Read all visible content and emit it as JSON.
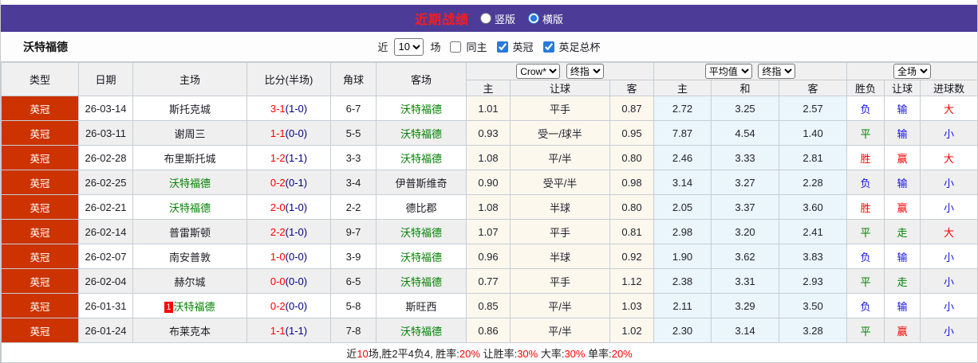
{
  "title_bar": {
    "title": "近期战绩",
    "radio_vertical": "竖版",
    "radio_horizontal": "横版"
  },
  "filter_bar": {
    "team": "沃特福德",
    "near_label": "近",
    "matches_value": "10",
    "matches_label": "场",
    "checkbox_same_home": "同主",
    "checkbox_league": "英冠",
    "checkbox_cup": "英足总杯"
  },
  "table": {
    "left_headers": [
      "类型",
      "日期",
      "主场",
      "比分(半场)",
      "角球",
      "客场"
    ],
    "group1": {
      "select1": "Crow*",
      "select2": "终指",
      "sub": [
        "主",
        "让球",
        "客"
      ]
    },
    "group2": {
      "select1": "平均值",
      "select2": "终指",
      "sub": [
        "主",
        "和",
        "客"
      ]
    },
    "group3": {
      "select1": "全场",
      "sub": [
        "胜负",
        "让球",
        "进球数"
      ]
    },
    "rows": [
      {
        "type": "英冠",
        "date": "26-03-14",
        "home": "斯托克城",
        "home_is_team": false,
        "score_ft": "3-1",
        "score_ht": "(1-0)",
        "corner": "6-7",
        "away": "沃特福德",
        "away_is_team": true,
        "odds": [
          "1.01",
          "平手",
          "0.87"
        ],
        "avg": [
          "2.72",
          "3.25",
          "2.57"
        ],
        "results": [
          {
            "text": "负",
            "color": "blue"
          },
          {
            "text": "输",
            "color": "blue"
          },
          {
            "text": "大",
            "color": "red"
          }
        ]
      },
      {
        "type": "英冠",
        "date": "26-03-11",
        "home": "谢周三",
        "home_is_team": false,
        "score_ft": "1-1",
        "score_ht": "(0-0)",
        "corner": "5-5",
        "away": "沃特福德",
        "away_is_team": true,
        "odds": [
          "0.93",
          "受一/球半",
          "0.95"
        ],
        "avg": [
          "7.87",
          "4.54",
          "1.40"
        ],
        "results": [
          {
            "text": "平",
            "color": "green"
          },
          {
            "text": "输",
            "color": "blue"
          },
          {
            "text": "小",
            "color": "blue"
          }
        ]
      },
      {
        "type": "英冠",
        "date": "26-02-28",
        "home": "布里斯托城",
        "home_is_team": false,
        "score_ft": "1-2",
        "score_ht": "(1-1)",
        "corner": "3-3",
        "away": "沃特福德",
        "away_is_team": true,
        "odds": [
          "1.08",
          "平/半",
          "0.80"
        ],
        "avg": [
          "2.46",
          "3.33",
          "2.81"
        ],
        "results": [
          {
            "text": "胜",
            "color": "red"
          },
          {
            "text": "赢",
            "color": "red"
          },
          {
            "text": "大",
            "color": "red"
          }
        ]
      },
      {
        "type": "英冠",
        "date": "26-02-25",
        "home": "沃特福德",
        "home_is_team": true,
        "score_ft": "0-2",
        "score_ht": "(0-1)",
        "corner": "3-4",
        "away": "伊普斯维奇",
        "away_is_team": false,
        "odds": [
          "0.90",
          "受平/半",
          "0.98"
        ],
        "avg": [
          "3.14",
          "3.27",
          "2.28"
        ],
        "results": [
          {
            "text": "负",
            "color": "blue"
          },
          {
            "text": "输",
            "color": "blue"
          },
          {
            "text": "小",
            "color": "blue"
          }
        ]
      },
      {
        "type": "英冠",
        "date": "26-02-21",
        "home": "沃特福德",
        "home_is_team": true,
        "score_ft": "2-0",
        "score_ht": "(1-0)",
        "corner": "2-2",
        "away": "德比郡",
        "away_is_team": false,
        "odds": [
          "1.08",
          "半球",
          "0.80"
        ],
        "avg": [
          "2.05",
          "3.37",
          "3.60"
        ],
        "results": [
          {
            "text": "胜",
            "color": "red"
          },
          {
            "text": "赢",
            "color": "red"
          },
          {
            "text": "小",
            "color": "blue"
          }
        ]
      },
      {
        "type": "英冠",
        "date": "26-02-14",
        "home": "普雷斯顿",
        "home_is_team": false,
        "score_ft": "2-2",
        "score_ht": "(1-0)",
        "corner": "9-7",
        "away": "沃特福德",
        "away_is_team": true,
        "odds": [
          "1.07",
          "平手",
          "0.81"
        ],
        "avg": [
          "2.98",
          "3.20",
          "2.41"
        ],
        "results": [
          {
            "text": "平",
            "color": "green"
          },
          {
            "text": "走",
            "color": "green"
          },
          {
            "text": "大",
            "color": "red"
          }
        ]
      },
      {
        "type": "英冠",
        "date": "26-02-07",
        "home": "南安普敦",
        "home_is_team": false,
        "score_ft": "1-0",
        "score_ht": "(0-0)",
        "corner": "3-9",
        "away": "沃特福德",
        "away_is_team": true,
        "odds": [
          "0.96",
          "半球",
          "0.92"
        ],
        "avg": [
          "1.90",
          "3.62",
          "3.83"
        ],
        "results": [
          {
            "text": "负",
            "color": "blue"
          },
          {
            "text": "输",
            "color": "blue"
          },
          {
            "text": "小",
            "color": "blue"
          }
        ]
      },
      {
        "type": "英冠",
        "date": "26-02-04",
        "home": "赫尔城",
        "home_is_team": false,
        "score_ft": "0-0",
        "score_ht": "(0-0)",
        "corner": "6-5",
        "away": "沃特福德",
        "away_is_team": true,
        "odds": [
          "0.77",
          "平手",
          "1.12"
        ],
        "avg": [
          "2.38",
          "3.31",
          "2.93"
        ],
        "results": [
          {
            "text": "平",
            "color": "green"
          },
          {
            "text": "走",
            "color": "green"
          },
          {
            "text": "小",
            "color": "blue"
          }
        ]
      },
      {
        "type": "英冠",
        "date": "26-01-31",
        "home": "沃特福德",
        "home_is_team": true,
        "badge": "1",
        "score_ft": "0-2",
        "score_ht": "(0-0)",
        "corner": "5-8",
        "away": "斯旺西",
        "away_is_team": false,
        "odds": [
          "0.85",
          "平/半",
          "1.03"
        ],
        "avg": [
          "2.11",
          "3.29",
          "3.50"
        ],
        "results": [
          {
            "text": "负",
            "color": "blue"
          },
          {
            "text": "输",
            "color": "blue"
          },
          {
            "text": "小",
            "color": "blue"
          }
        ]
      },
      {
        "type": "英冠",
        "date": "26-01-24",
        "home": "布莱克本",
        "home_is_team": false,
        "score_ft": "1-1",
        "score_ht": "(1-1)",
        "corner": "7-8",
        "away": "沃特福德",
        "away_is_team": true,
        "odds": [
          "0.86",
          "平/半",
          "1.02"
        ],
        "avg": [
          "2.30",
          "3.14",
          "3.28"
        ],
        "results": [
          {
            "text": "平",
            "color": "green"
          },
          {
            "text": "赢",
            "color": "red"
          },
          {
            "text": "小",
            "color": "blue"
          }
        ]
      }
    ]
  },
  "footer": {
    "segments": [
      {
        "text": "近",
        "color": "dark"
      },
      {
        "text": "10",
        "color": "red"
      },
      {
        "text": "场,胜2平4负4, 胜率:",
        "color": "dark"
      },
      {
        "text": "20%",
        "color": "red"
      },
      {
        "text": " 让胜率:",
        "color": "dark"
      },
      {
        "text": "30%",
        "color": "red"
      },
      {
        "text": " 大率:",
        "color": "dark"
      },
      {
        "text": "30%",
        "color": "red"
      },
      {
        "text": " 单率:",
        "color": "dark"
      },
      {
        "text": "20%",
        "color": "red"
      }
    ]
  },
  "colors": {
    "header_purple": "#4c3c98",
    "title_red": "#ff1a1a",
    "league_badge_bg": "#cc3300",
    "team_green": "#008000",
    "win_red": "#ff0000",
    "loss_blue": "#1414e0",
    "odds_cell_bg": "#fcf8ee",
    "avg_cell_bg": "#eaf5fc",
    "alt_row_bg": "#efefef"
  }
}
